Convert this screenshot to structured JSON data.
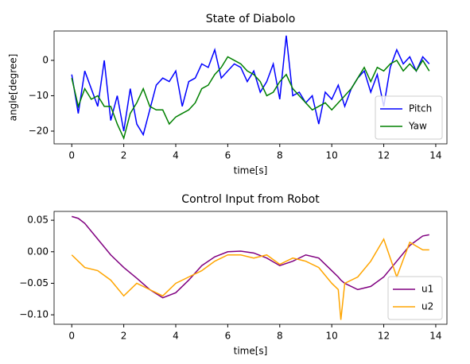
{
  "chart_data": [
    {
      "type": "line",
      "title": "State of Diabolo",
      "xlabel": "time[s]",
      "ylabel": "angle[degree]",
      "x": [
        0,
        0.25,
        0.5,
        0.75,
        1,
        1.25,
        1.5,
        1.75,
        2,
        2.25,
        2.5,
        2.75,
        3,
        3.25,
        3.5,
        3.75,
        4,
        4.25,
        4.5,
        4.75,
        5,
        5.25,
        5.5,
        5.75,
        6,
        6.25,
        6.5,
        6.75,
        7,
        7.25,
        7.5,
        7.75,
        8,
        8.25,
        8.5,
        8.75,
        9,
        9.25,
        9.5,
        9.75,
        10,
        10.25,
        10.5,
        10.75,
        11,
        11.25,
        11.5,
        11.75,
        12,
        12.25,
        12.5,
        12.75,
        13,
        13.25,
        13.5,
        13.75
      ],
      "series": [
        {
          "name": "Pitch",
          "color": "#0000ff",
          "values": [
            -4,
            -15,
            -3,
            -8,
            -13,
            0,
            -17,
            -10,
            -20,
            -8,
            -18,
            -21,
            -14,
            -7,
            -5,
            -6,
            -3,
            -13,
            -6,
            -5,
            -1,
            -2,
            3,
            -5,
            -3,
            -1,
            -2,
            -6,
            -3,
            -9,
            -6,
            -1,
            -11,
            7,
            -10,
            -9,
            -12,
            -10,
            -18,
            -9,
            -11,
            -7,
            -13,
            -8,
            -5,
            -3,
            -9,
            -4,
            -13,
            -2,
            3,
            -1,
            1,
            -3,
            1,
            -1
          ]
        },
        {
          "name": "Yaw",
          "color": "#008000",
          "values": [
            -5,
            -13,
            -8,
            -11,
            -10,
            -13,
            -13,
            -18,
            -22,
            -15,
            -12,
            -8,
            -13,
            -14,
            -14,
            -18,
            -16,
            -15,
            -14,
            -12,
            -8,
            -7,
            -4,
            -2,
            1,
            0,
            -1,
            -3,
            -4,
            -6,
            -10,
            -9,
            -6,
            -4,
            -8,
            -10,
            -12,
            -14,
            -13,
            -12,
            -14,
            -12,
            -10,
            -8,
            -5,
            -2,
            -6,
            -2,
            -3,
            -1,
            0,
            -3,
            -1,
            -3,
            0,
            -3
          ]
        }
      ],
      "xlim": [
        -0.68,
        14.43
      ],
      "xticks": [
        0,
        2,
        4,
        6,
        8,
        10,
        12,
        14
      ],
      "ylim": [
        -23.6,
        8.3
      ],
      "yticks": [
        0,
        {
          "value": -10,
          "label": "−10"
        },
        {
          "value": -20,
          "label": "−20"
        }
      ],
      "legend": "lower right"
    },
    {
      "type": "line",
      "title": "Control Input from Robot",
      "xlabel": "time[s]",
      "x": [
        0,
        0.25,
        0.5,
        1,
        1.5,
        2,
        2.5,
        3,
        3.5,
        4,
        4.5,
        5,
        5.5,
        6,
        6.5,
        7,
        7.5,
        8,
        8.5,
        9,
        9.5,
        10,
        10.25,
        10.35,
        10.5,
        11,
        11.5,
        12,
        12.5,
        13,
        13.5,
        13.75
      ],
      "series": [
        {
          "name": "u1",
          "color": "#800080",
          "values": [
            0.056,
            0.053,
            0.045,
            0.02,
            -0.005,
            -0.025,
            -0.042,
            -0.06,
            -0.073,
            -0.065,
            -0.045,
            -0.022,
            -0.008,
            0,
            0.001,
            -0.002,
            -0.01,
            -0.022,
            -0.015,
            -0.005,
            -0.01,
            -0.03,
            -0.04,
            -0.045,
            -0.05,
            -0.06,
            -0.055,
            -0.04,
            -0.015,
            0.01,
            0.025,
            0.027
          ]
        },
        {
          "name": "u2",
          "color": "#ffa500",
          "values": [
            -0.005,
            -0.015,
            -0.025,
            -0.03,
            -0.045,
            -0.07,
            -0.05,
            -0.06,
            -0.07,
            -0.05,
            -0.04,
            -0.03,
            -0.015,
            -0.005,
            -0.005,
            -0.01,
            -0.005,
            -0.02,
            -0.01,
            -0.015,
            -0.025,
            -0.05,
            -0.06,
            -0.108,
            -0.05,
            -0.04,
            -0.015,
            0.02,
            -0.04,
            0.015,
            0.003,
            0.003
          ]
        }
      ],
      "xlim": [
        -0.68,
        14.43
      ],
      "xticks": [
        0,
        2,
        4,
        6,
        8,
        10,
        12,
        14
      ],
      "ylim": [
        -0.115,
        0.064
      ],
      "yticks": [
        0.05,
        {
          "value": 0,
          "label": "0.00"
        },
        {
          "value": -0.05,
          "label": "−0.05"
        },
        {
          "value": -0.1,
          "label": "−0.10"
        }
      ],
      "legend": "lower right"
    }
  ]
}
